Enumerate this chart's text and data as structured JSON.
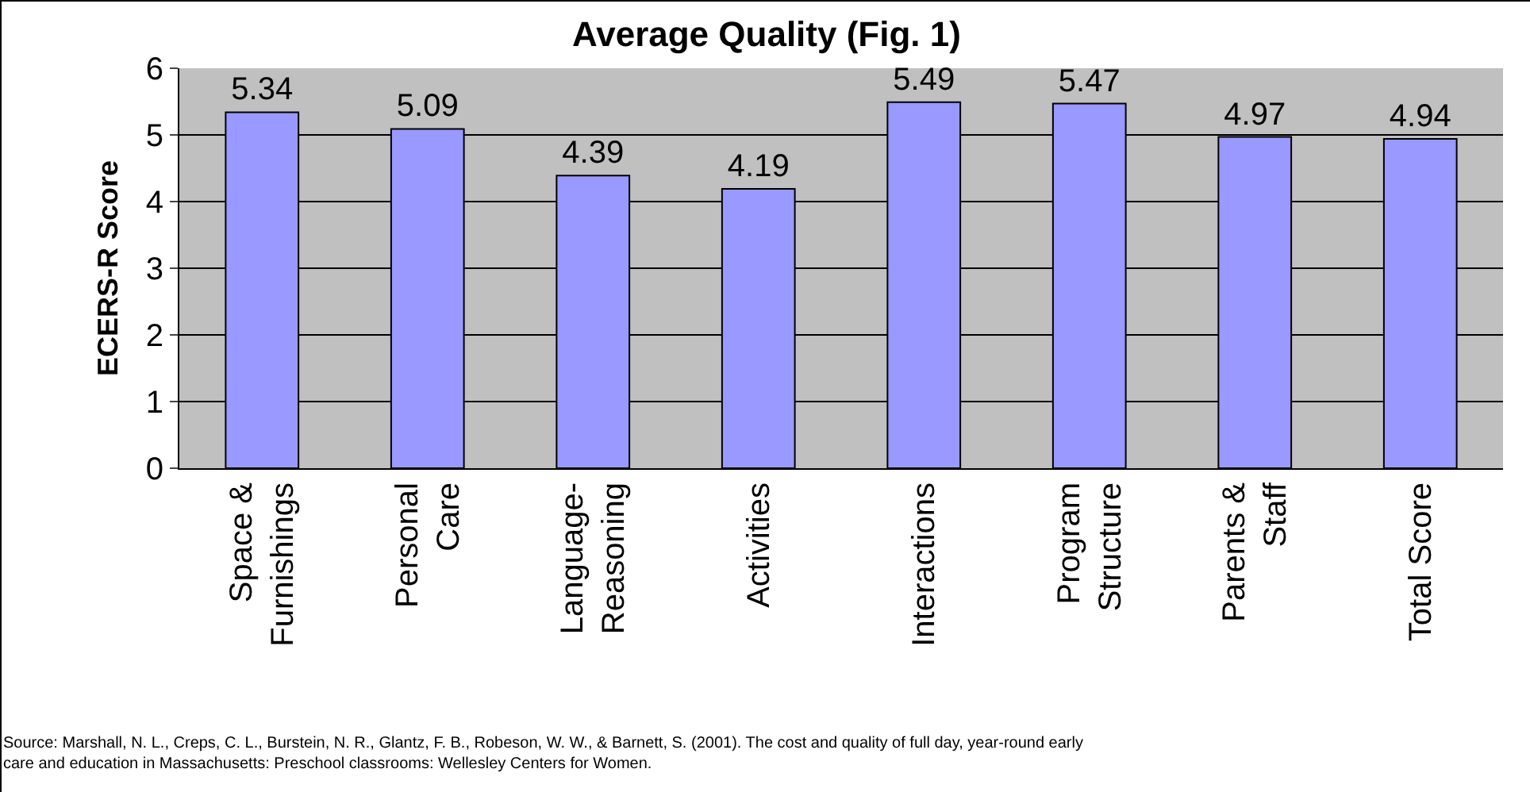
{
  "chart_data": {
    "type": "bar",
    "title": "Average Quality (Fig. 1)",
    "ylabel": "ECERS-R Score",
    "categories": [
      "Space &\nFurnishings",
      "Personal\nCare",
      "Language-\nReasoning",
      "Activities",
      "Interactions",
      "Program\nStructure",
      "Parents &\nStaff",
      "Total Score"
    ],
    "values": [
      5.34,
      5.09,
      4.39,
      4.19,
      5.49,
      5.47,
      4.97,
      4.94
    ],
    "color": "#9999ff",
    "ylim": [
      0,
      6
    ],
    "yticks": [
      0,
      1,
      2,
      3,
      4,
      5,
      6
    ],
    "grid": "y",
    "data_labels": true,
    "annotations": [
      "Source: Marshall, N. L., Creps, C. L., Burstein, N. R., Glantz, F. B., Robeson, W. W., & Barnett, S. (2001). The cost and quality of full day, year-round early\ncare and education in Massachusetts: Preschool classrooms: Wellesley Centers for Women."
    ]
  }
}
